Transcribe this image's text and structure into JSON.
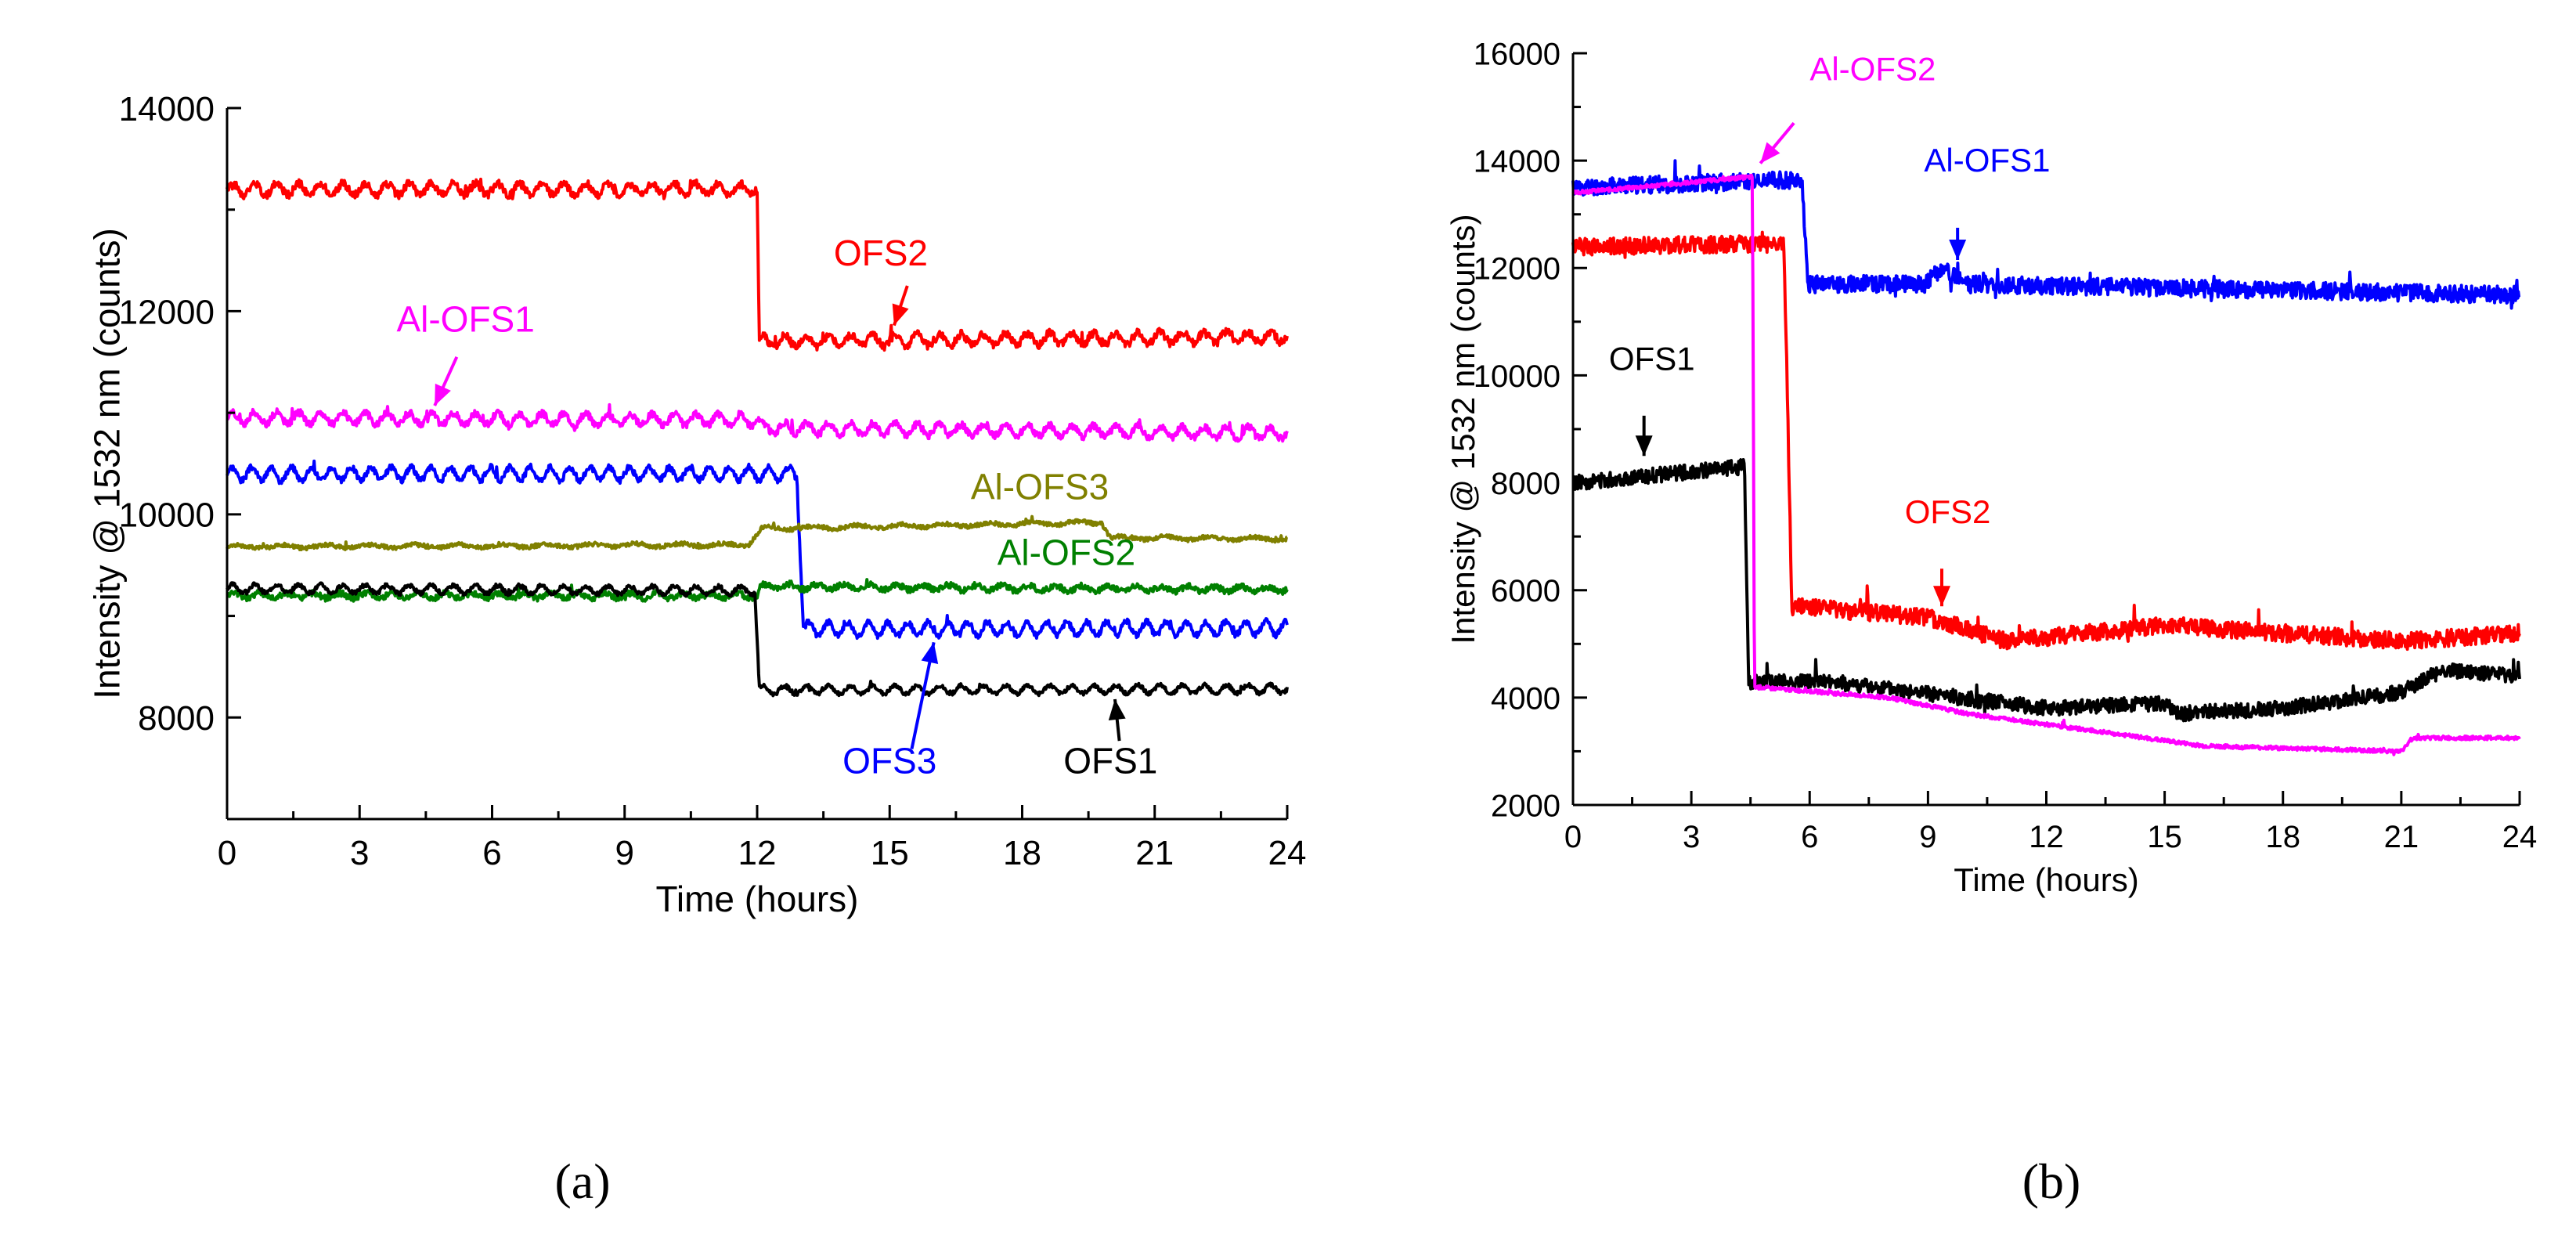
{
  "figure": {
    "panel_a_label": "(a)",
    "panel_b_label": "(b)"
  },
  "chart_data": [
    {
      "id": "a",
      "type": "line",
      "xlabel": "Time (hours)",
      "ylabel": "Intensity @ 1532 nm (counts)",
      "xlim": [
        0,
        24
      ],
      "ylim": [
        7000,
        14000
      ],
      "xticks": [
        0,
        3,
        6,
        9,
        12,
        15,
        18,
        21,
        24
      ],
      "yticks": [
        8000,
        10000,
        12000,
        14000
      ],
      "grid": false,
      "series": [
        {
          "name": "OFS2",
          "color": "#ff0000",
          "noise": 40,
          "ripple": 55,
          "period": 0.5,
          "seed": 1,
          "segments": [
            [
              0,
              13200
            ],
            [
              12,
              13200
            ],
            [
              12.05,
              11700
            ],
            [
              24,
              11750
            ]
          ]
        },
        {
          "name": "Al-OFS1",
          "color": "#ff00ff",
          "noise": 35,
          "ripple": 55,
          "period": 0.5,
          "seed": 2,
          "segments": [
            [
              0,
              10950
            ],
            [
              12,
              10930
            ],
            [
              12.1,
              10850
            ],
            [
              24,
              10800
            ]
          ]
        },
        {
          "name": "OFS3",
          "color": "#0000ff",
          "noise": 30,
          "ripple": 65,
          "period": 0.45,
          "seed": 3,
          "segments": [
            [
              0,
              10400
            ],
            [
              12.9,
              10400
            ],
            [
              13.05,
              8870
            ],
            [
              24,
              8880
            ]
          ]
        },
        {
          "name": "Al-OFS3",
          "color": "#808000",
          "noise": 20,
          "ripple": 15,
          "period": 1,
          "seed": 4,
          "segments": [
            [
              0,
              9680
            ],
            [
              11.8,
              9700
            ],
            [
              12.1,
              9860
            ],
            [
              19.8,
              9920
            ],
            [
              20,
              9770
            ],
            [
              24,
              9760
            ]
          ]
        },
        {
          "name": "Al-OFS2",
          "color": "#008000",
          "noise": 30,
          "ripple": 25,
          "period": 0.6,
          "seed": 5,
          "segments": [
            [
              0,
              9200
            ],
            [
              12,
              9200
            ],
            [
              12.1,
              9290
            ],
            [
              24,
              9260
            ]
          ]
        },
        {
          "name": "OFS1",
          "color": "#000000",
          "noise": 20,
          "ripple": 40,
          "period": 0.5,
          "seed": 6,
          "segments": [
            [
              0,
              9270
            ],
            [
              11.95,
              9250
            ],
            [
              12.05,
              8270
            ],
            [
              24,
              8280
            ]
          ]
        }
      ],
      "annotations": [
        {
          "text": "OFS2",
          "color": "#ff0000",
          "x": 14.8,
          "y": 12450,
          "ax": 15.4,
          "ay": 12250,
          "tx": 15.1,
          "ty": 11860
        },
        {
          "text": "Al-OFS1",
          "color": "#ff00ff",
          "x": 5.4,
          "y": 11800,
          "ax": 5.2,
          "ay": 11550,
          "tx": 4.7,
          "ty": 11070
        },
        {
          "text": "Al-OFS3",
          "color": "#808000",
          "x": 18.4,
          "y": 10150,
          "ax": null,
          "ay": null,
          "tx": null,
          "ty": null
        },
        {
          "text": "Al-OFS2",
          "color": "#008000",
          "x": 19.0,
          "y": 9500,
          "ax": null,
          "ay": null,
          "tx": null,
          "ty": null
        },
        {
          "text": "OFS3",
          "color": "#0000ff",
          "x": 15.0,
          "y": 7450,
          "ax": 15.5,
          "ay": 7690,
          "tx": 16.0,
          "ty": 8740
        },
        {
          "text": "OFS1",
          "color": "#000000",
          "x": 20.0,
          "y": 7450,
          "ax": 20.2,
          "ay": 7770,
          "tx": 20.1,
          "ty": 8180
        }
      ]
    },
    {
      "id": "b",
      "type": "line",
      "xlabel": "Time (hours)",
      "ylabel": "Intensity @ 1532 nm (counts)",
      "xlim": [
        0,
        24
      ],
      "ylim": [
        2000,
        16000
      ],
      "xticks": [
        0,
        3,
        6,
        9,
        12,
        15,
        18,
        21,
        24
      ],
      "yticks": [
        2000,
        4000,
        6000,
        8000,
        10000,
        12000,
        14000,
        16000
      ],
      "grid": false,
      "series": [
        {
          "name": "Al-OFS1",
          "color": "#0000ff",
          "noise": 160,
          "ripple": 0,
          "period": 1,
          "seed": 11,
          "segments": [
            [
              0,
              13500
            ],
            [
              5.8,
              13650
            ],
            [
              5.95,
              11700
            ],
            [
              8.9,
              11700
            ],
            [
              9.4,
              12000
            ],
            [
              9.9,
              11700
            ],
            [
              24,
              11500
            ]
          ]
        },
        {
          "name": "OFS2",
          "color": "#ff0000",
          "noise": 160,
          "ripple": 0,
          "period": 1,
          "seed": 12,
          "segments": [
            [
              0,
              12400
            ],
            [
              5.35,
              12450
            ],
            [
              5.55,
              5700
            ],
            [
              9,
              5500
            ],
            [
              11,
              5050
            ],
            [
              15,
              5350
            ],
            [
              21,
              5050
            ],
            [
              24,
              5200
            ]
          ]
        },
        {
          "name": "OFS1",
          "color": "#000000",
          "noise": 140,
          "ripple": 0,
          "period": 1,
          "seed": 13,
          "segments": [
            [
              0,
              8000
            ],
            [
              4.35,
              8300
            ],
            [
              4.45,
              4300
            ],
            [
              6.5,
              4300
            ],
            [
              12,
              3800
            ],
            [
              15,
              3900
            ],
            [
              15.3,
              3700
            ],
            [
              18,
              3800
            ],
            [
              21,
              4100
            ],
            [
              22,
              4500
            ],
            [
              24,
              4400
            ]
          ]
        },
        {
          "name": "Al-OFS2",
          "color": "#ff00ff",
          "noise": 35,
          "ripple": 0,
          "period": 1,
          "seed": 14,
          "segments": [
            [
              0,
              13400
            ],
            [
              4.55,
              13700
            ],
            [
              4.6,
              4200
            ],
            [
              8,
              4000
            ],
            [
              10,
              3700
            ],
            [
              12,
              3500
            ],
            [
              16,
              3100
            ],
            [
              21,
              3000
            ],
            [
              21.3,
              3250
            ],
            [
              24,
              3250
            ]
          ]
        }
      ],
      "annotations": [
        {
          "text": "Al-OFS2",
          "color": "#ff00ff",
          "x": 7.6,
          "y": 15500,
          "ax": 5.6,
          "ay": 14700,
          "tx": 4.75,
          "ty": 13950
        },
        {
          "text": "Al-OFS1",
          "color": "#0000ff",
          "x": 10.5,
          "y": 13800,
          "ax": 9.75,
          "ay": 12750,
          "tx": 9.75,
          "ty": 12150
        },
        {
          "text": "OFS1",
          "color": "#000000",
          "x": 2.0,
          "y": 10100,
          "ax": 1.8,
          "ay": 9250,
          "tx": 1.8,
          "ty": 8500
        },
        {
          "text": "OFS2",
          "color": "#ff0000",
          "x": 9.5,
          "y": 7250,
          "ax": 9.35,
          "ay": 6400,
          "tx": 9.35,
          "ty": 5700
        }
      ]
    }
  ]
}
